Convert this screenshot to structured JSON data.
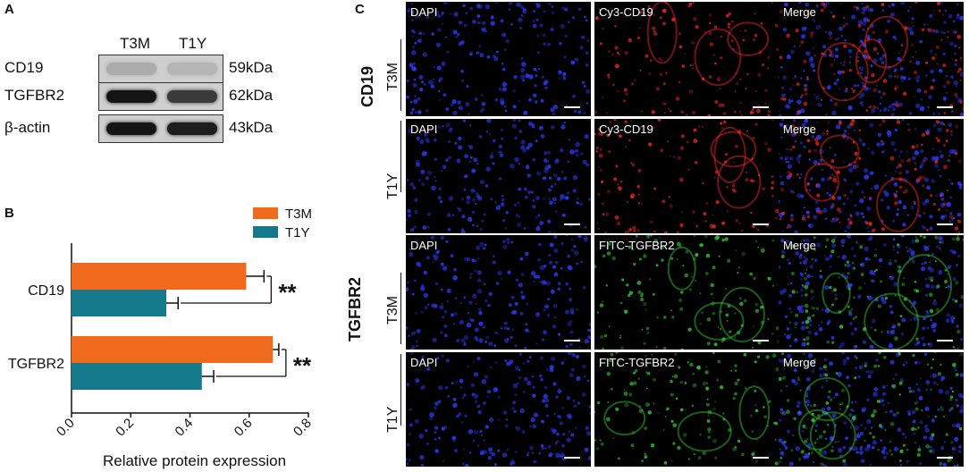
{
  "panel_a": {
    "letter": "A",
    "lanes": [
      "T3M",
      "T1Y"
    ],
    "rows": [
      {
        "protein": "CD19",
        "kda": "59kDa",
        "band_intensity": [
          0.15,
          0.1
        ]
      },
      {
        "protein": "TGFBR2",
        "kda": "62kDa",
        "band_intensity": [
          0.95,
          0.75
        ]
      },
      {
        "protein": "β-actin",
        "kda": "43kDa",
        "band_intensity": [
          0.95,
          0.9
        ]
      }
    ]
  },
  "panel_b": {
    "letter": "B"
  },
  "chart_data": {
    "type": "bar",
    "orientation": "horizontal",
    "categories": [
      "CD19",
      "TGFBR2"
    ],
    "series": [
      {
        "name": "T3M",
        "color": "#ef6a1d",
        "values": [
          0.59,
          0.68
        ],
        "errors": [
          0.06,
          0.02
        ]
      },
      {
        "name": "T1Y",
        "color": "#15798c",
        "values": [
          0.32,
          0.44
        ],
        "errors": [
          0.04,
          0.04
        ]
      }
    ],
    "significance": [
      "**",
      "**"
    ],
    "xlabel": "Relative protein expression",
    "ylabel": "",
    "xlim": [
      0,
      0.8
    ],
    "xticks": [
      "0.0",
      "0.2",
      "0.4",
      "0.6",
      "0.8"
    ],
    "legend_position": "top-right",
    "grid": false
  },
  "panel_c": {
    "letter": "C",
    "groups": [
      {
        "name": "CD19",
        "rows": [
          {
            "sample": "T3M",
            "labels": [
              "DAPI",
              "Cy3-CD19",
              "Merge"
            ],
            "stain_color": "#ff2a2a"
          },
          {
            "sample": "T1Y",
            "labels": [
              "DAPI",
              "Cy3-CD19",
              "Merge"
            ],
            "stain_color": "#ff2a2a"
          }
        ]
      },
      {
        "name": "TGFBR2",
        "rows": [
          {
            "sample": "T3M",
            "labels": [
              "DAPI",
              "FITC-TGFBR2",
              "Merge"
            ],
            "stain_color": "#39d139"
          },
          {
            "sample": "T1Y",
            "labels": [
              "DAPI",
              "FITC-TGFBR2",
              "Merge"
            ],
            "stain_color": "#39d139"
          }
        ]
      }
    ]
  }
}
